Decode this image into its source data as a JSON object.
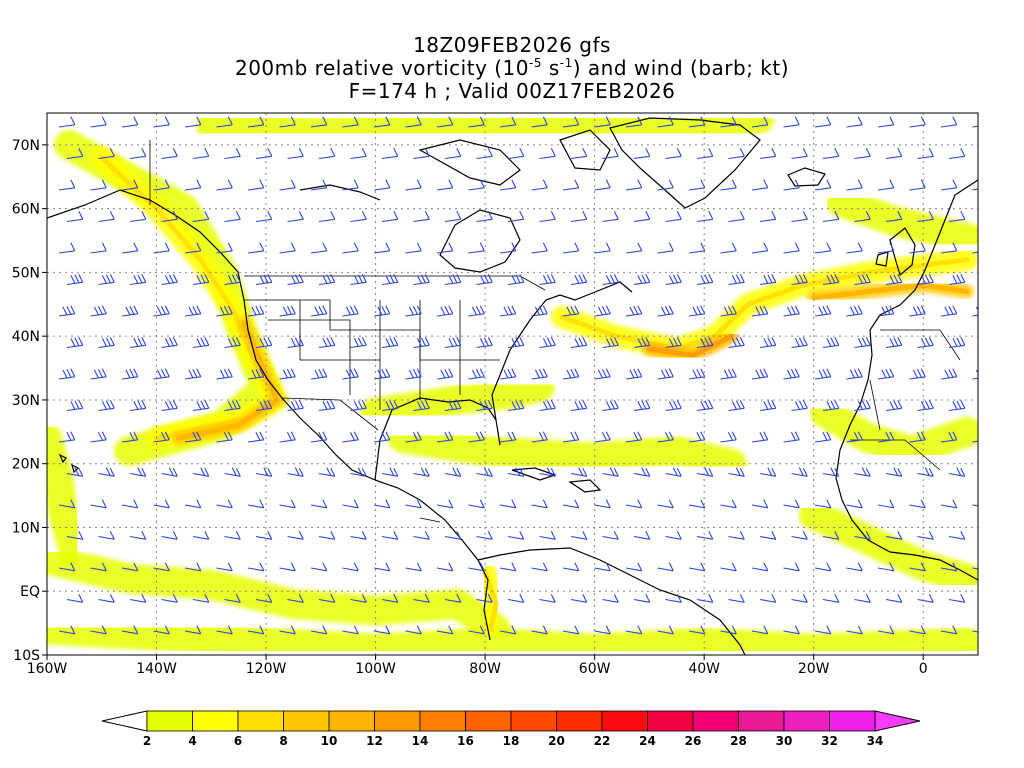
{
  "title": {
    "line1": "18Z09FEB2026 gfs",
    "line2_prefix": "200mb relative vorticity (10",
    "line2_exp1": "-5",
    "line2_mid": " s",
    "line2_exp2": "-1",
    "line2_suffix": ") and wind (barb; kt)",
    "line3": "F=174 h ; Valid 00Z17FEB2026"
  },
  "axes": {
    "lat_labels": [
      "70N",
      "60N",
      "50N",
      "40N",
      "30N",
      "20N",
      "10N",
      "EQ",
      "10S"
    ],
    "lat_values": [
      70,
      60,
      50,
      40,
      30,
      20,
      10,
      0,
      -10
    ],
    "lon_labels": [
      "160W",
      "140W",
      "120W",
      "100W",
      "80W",
      "60W",
      "40W",
      "20W",
      "0"
    ],
    "lon_values": [
      -160,
      -140,
      -120,
      -100,
      -80,
      -60,
      -40,
      -20,
      0
    ],
    "lon_range": [
      -160,
      10
    ],
    "lat_range": [
      -10,
      75
    ],
    "grid": "dotted"
  },
  "colorbar": {
    "labels": [
      "2",
      "4",
      "6",
      "8",
      "10",
      "12",
      "14",
      "16",
      "18",
      "20",
      "22",
      "24",
      "26",
      "28",
      "30",
      "32",
      "34"
    ],
    "colors": [
      "#e6ff00",
      "#ffff00",
      "#ffdf00",
      "#ffc800",
      "#ffb400",
      "#ff9a00",
      "#ff7e00",
      "#ff6200",
      "#ff4800",
      "#ff2a00",
      "#ff0a10",
      "#f50040",
      "#f00070",
      "#ea1a95",
      "#f020c0",
      "#f020ea"
    ],
    "under_color": "#ffffff",
    "over_color": "#f83cff"
  },
  "vorticity_bands": [
    {
      "pts": [
        [
          -156,
          70
        ],
        [
          -135,
          60
        ],
        [
          -128,
          50
        ],
        [
          -124,
          40
        ],
        [
          -120,
          32
        ],
        [
          -128,
          26
        ],
        [
          -145,
          22
        ]
      ],
      "level": 2
    },
    {
      "pts": [
        [
          -150,
          68
        ],
        [
          -140,
          60
        ],
        [
          -132,
          52
        ],
        [
          -126,
          44
        ],
        [
          -122,
          36
        ],
        [
          -118,
          30
        ],
        [
          -124,
          27
        ],
        [
          -140,
          24
        ]
      ],
      "level": 4
    },
    {
      "pts": [
        [
          -124,
          42
        ],
        [
          -120,
          34
        ],
        [
          -118,
          30
        ],
        [
          -125,
          26
        ],
        [
          -136,
          24
        ]
      ],
      "level": 8
    },
    {
      "pts": [
        [
          -160,
          5
        ],
        [
          -145,
          2
        ],
        [
          -130,
          1
        ],
        [
          -115,
          -2
        ],
        [
          -100,
          -3
        ],
        [
          -85,
          -2
        ],
        [
          -78,
          -6
        ]
      ],
      "level": 2
    },
    {
      "pts": [
        [
          -160,
          -6
        ],
        [
          -140,
          -7
        ],
        [
          -120,
          -8
        ],
        [
          -100,
          -9
        ],
        [
          -80,
          -8
        ],
        [
          -60,
          -9
        ],
        [
          -40,
          -8
        ],
        [
          -20,
          -9
        ],
        [
          8,
          -8
        ]
      ],
      "level": 2
    },
    {
      "pts": [
        [
          -66,
          43
        ],
        [
          -56,
          40
        ],
        [
          -45,
          38
        ],
        [
          -38,
          40
        ],
        [
          -32,
          45
        ],
        [
          -22,
          48
        ],
        [
          -10,
          50
        ],
        [
          8,
          52
        ]
      ],
      "level": 4
    },
    {
      "pts": [
        [
          -50,
          38
        ],
        [
          -42,
          37
        ],
        [
          -35,
          40
        ]
      ],
      "level": 10
    },
    {
      "pts": [
        [
          -20,
          46
        ],
        [
          -10,
          47
        ],
        [
          0,
          48
        ],
        [
          8,
          47
        ]
      ],
      "level": 8
    },
    {
      "pts": [
        [
          -130,
          73
        ],
        [
          -110,
          72
        ],
        [
          -90,
          73
        ],
        [
          -70,
          73
        ],
        [
          -50,
          72
        ],
        [
          -30,
          74
        ]
      ],
      "level": 2
    },
    {
      "pts": [
        [
          -15,
          61
        ],
        [
          -5,
          58
        ],
        [
          5,
          56
        ],
        [
          10,
          55
        ]
      ],
      "level": 2
    },
    {
      "pts": [
        [
          -95,
          24
        ],
        [
          -80,
          22
        ],
        [
          -60,
          21
        ],
        [
          -45,
          22
        ],
        [
          -35,
          20
        ]
      ],
      "level": 2
    },
    {
      "pts": [
        [
          -100,
          28
        ],
        [
          -85,
          30
        ],
        [
          -75,
          31
        ],
        [
          -70,
          32
        ]
      ],
      "level": 2
    },
    {
      "pts": [
        [
          -160,
          24
        ],
        [
          -158,
          18
        ],
        [
          -157,
          12
        ],
        [
          -155,
          6
        ]
      ],
      "level": 2
    },
    {
      "pts": [
        [
          -80,
          3
        ],
        [
          -78,
          -2
        ],
        [
          -79,
          -6
        ]
      ],
      "level": 4
    },
    {
      "pts": [
        [
          -18,
          28
        ],
        [
          -10,
          24
        ],
        [
          -2,
          22
        ],
        [
          8,
          25
        ]
      ],
      "level": 2
    },
    {
      "pts": [
        [
          -20,
          12
        ],
        [
          -10,
          8
        ],
        [
          0,
          4
        ],
        [
          8,
          2
        ]
      ],
      "level": 2
    }
  ]
}
